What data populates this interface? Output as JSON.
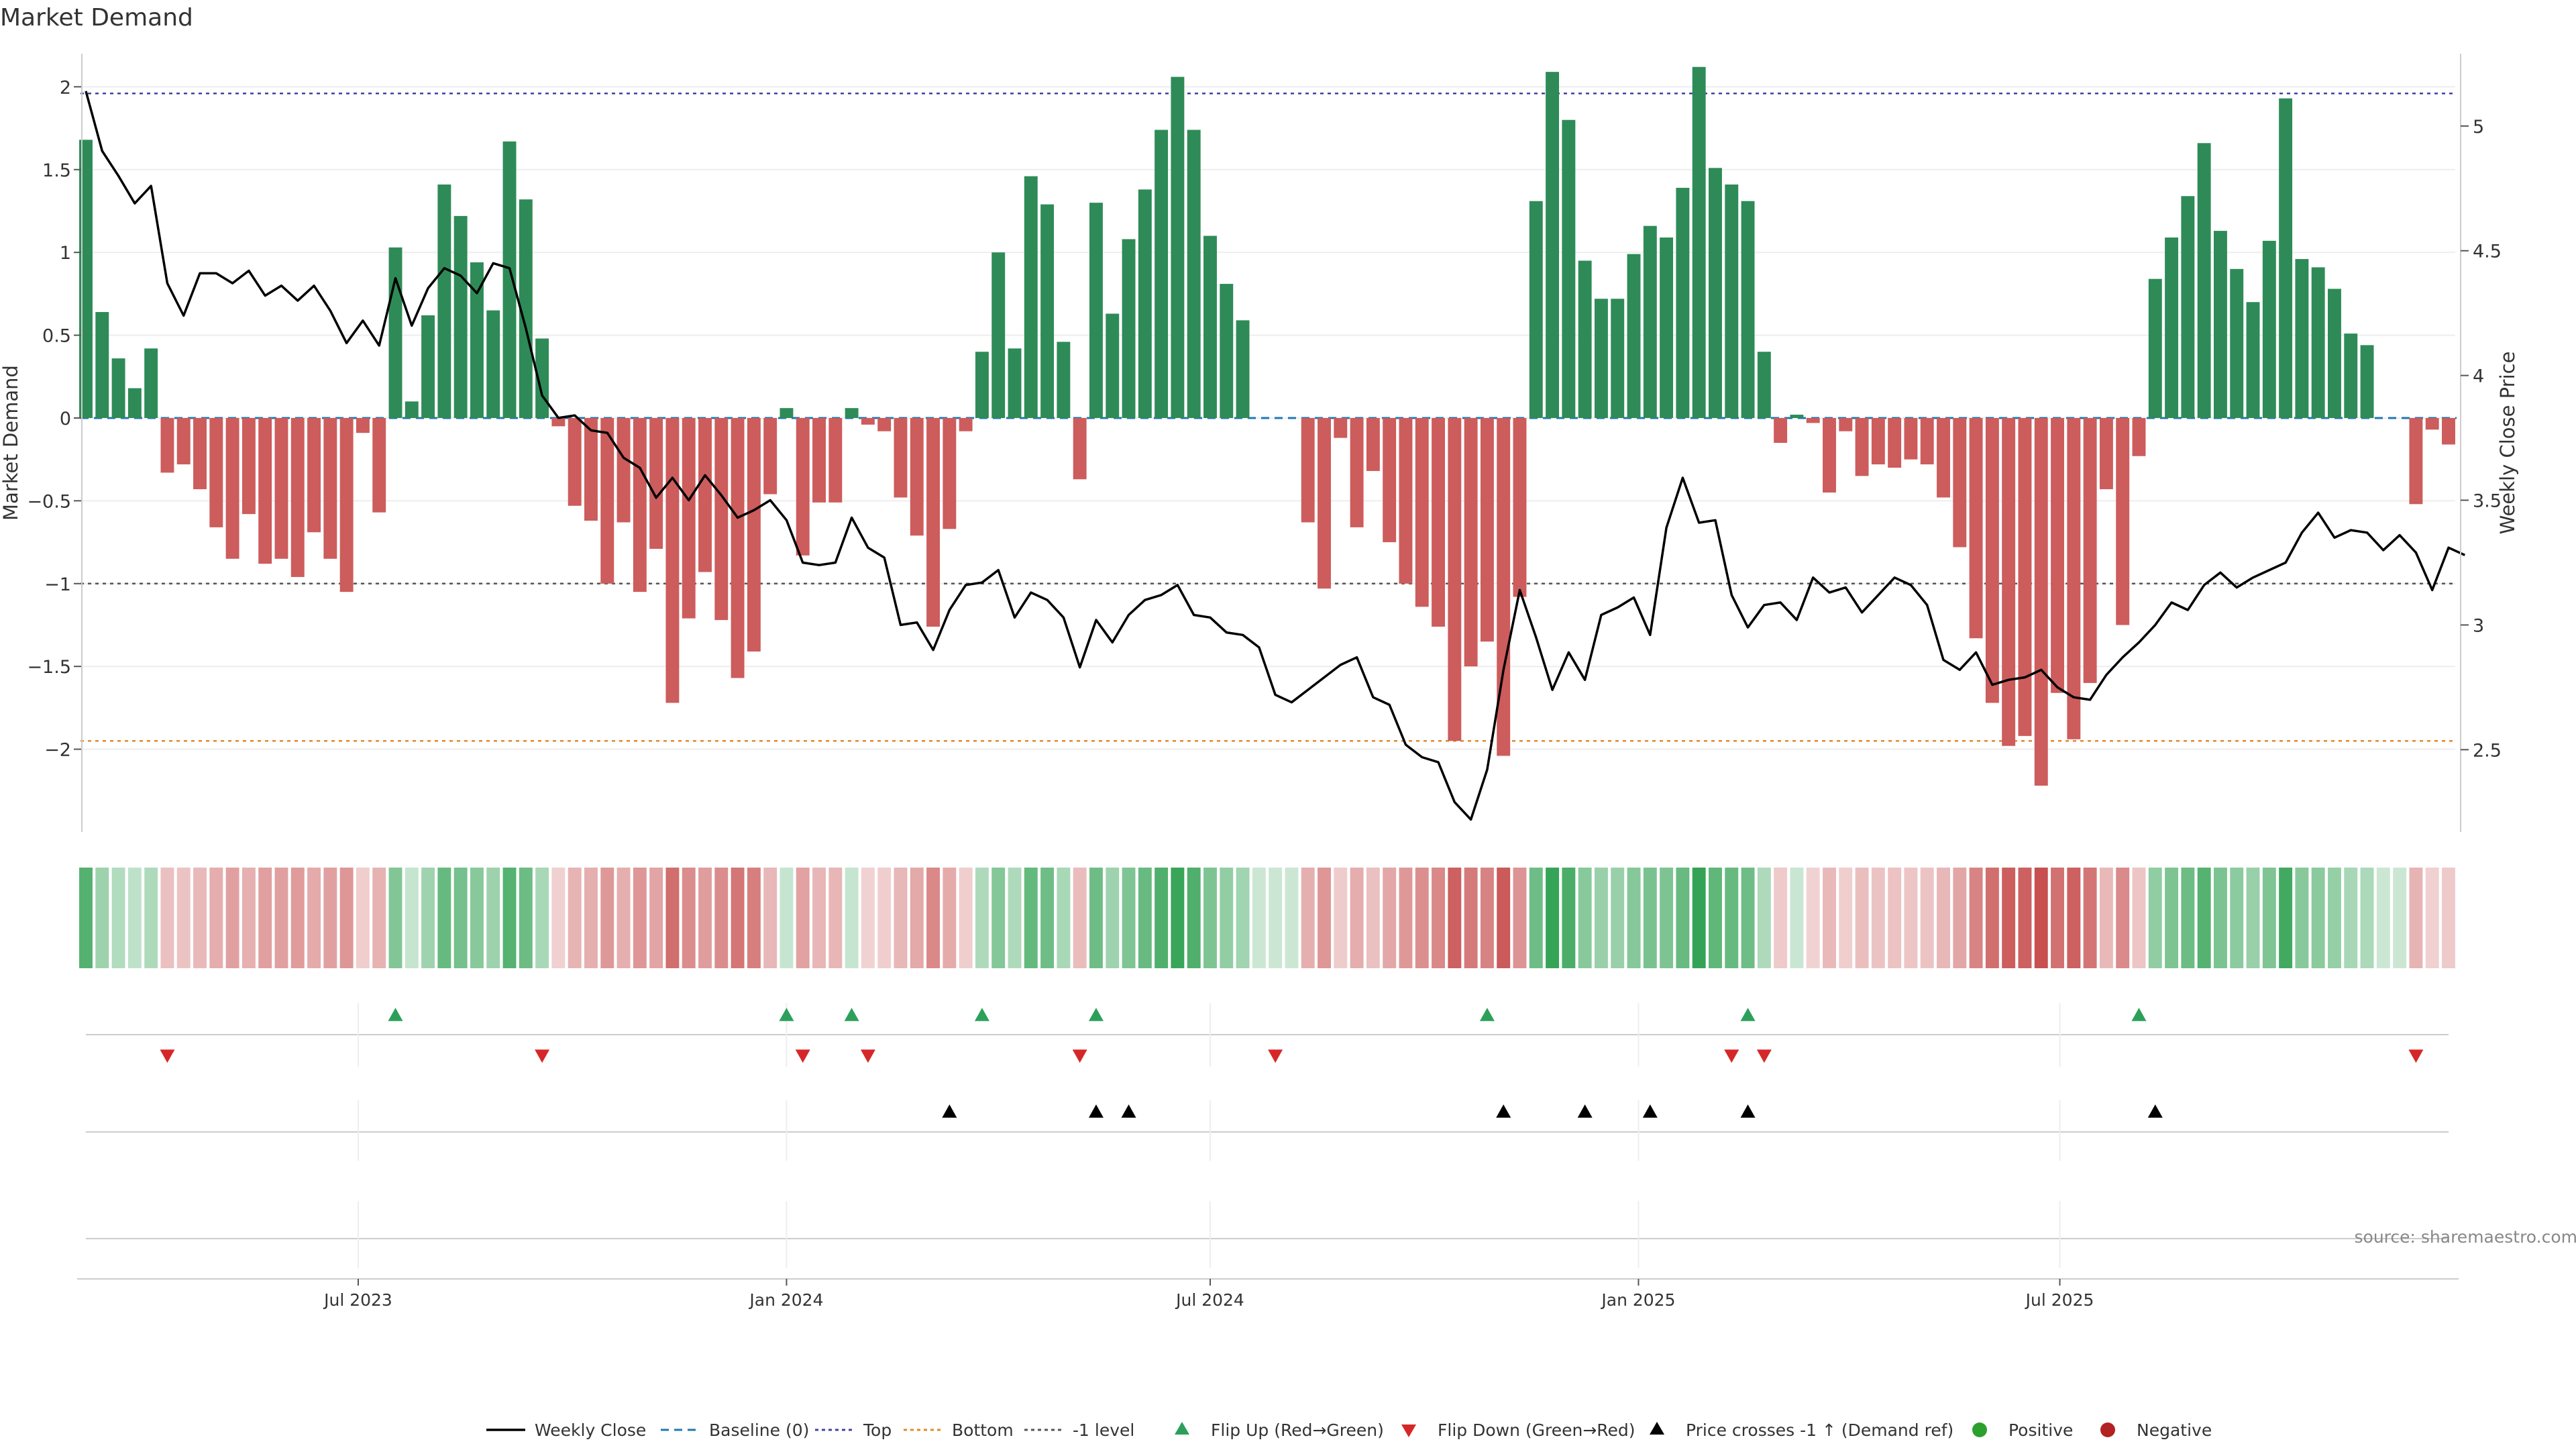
{
  "title": "Market Demand",
  "source_note": "source: sharemaestro.com",
  "chart_data": {
    "type": "bar",
    "title": "Market Demand",
    "ylabel": "Market Demand",
    "y2label": "Weekly Close Price",
    "ylim": [
      -2.5,
      2.2
    ],
    "y2lim": [
      2.17,
      5.29
    ],
    "yticks": [
      -2,
      -1.5,
      -1,
      -0.5,
      0,
      0.5,
      1,
      1.5,
      2
    ],
    "y2ticks": [
      2.5,
      3,
      3.5,
      4,
      4.5,
      5
    ],
    "x_start": "2023-03-06",
    "x_interval_days": 7,
    "xticks": [
      {
        "label": "Jul 2023",
        "date": "2023-07-01"
      },
      {
        "label": "Jan 2024",
        "date": "2024-01-01"
      },
      {
        "label": "Jul 2024",
        "date": "2024-07-01"
      },
      {
        "label": "Jan 2025",
        "date": "2025-01-01"
      },
      {
        "label": "Jul 2025",
        "date": "2025-07-01"
      }
    ],
    "reference_lines": {
      "top": 1.96,
      "bottom": -1.95,
      "minus_one": -1.0,
      "baseline": 0
    },
    "demand": [
      1.68,
      0.64,
      0.36,
      0.18,
      0.42,
      -0.33,
      -0.28,
      -0.43,
      -0.66,
      -0.85,
      -0.58,
      -0.88,
      -0.85,
      -0.96,
      -0.69,
      -0.85,
      -1.05,
      -0.09,
      -0.57,
      1.03,
      0.1,
      0.62,
      1.41,
      1.22,
      0.94,
      0.65,
      1.67,
      1.32,
      0.48,
      -0.05,
      -0.53,
      -0.62,
      -1.0,
      -0.63,
      -1.05,
      -0.79,
      -1.72,
      -1.21,
      -0.93,
      -1.22,
      -1.57,
      -1.41,
      -0.46,
      0.06,
      -0.83,
      -0.51,
      -0.51,
      0.06,
      -0.04,
      -0.08,
      -0.48,
      -0.71,
      -1.26,
      -0.67,
      -0.08,
      0.4,
      1.0,
      0.42,
      1.46,
      1.29,
      0.46,
      -0.37,
      1.3,
      0.63,
      1.08,
      1.38,
      1.74,
      2.06,
      1.74,
      1.1,
      0.81,
      0.59,
      0,
      0,
      0,
      -0.63,
      -1.03,
      -0.12,
      -0.66,
      -0.32,
      -0.75,
      -1.0,
      -1.14,
      -1.26,
      -1.95,
      -1.5,
      -1.35,
      -2.04,
      -1.08,
      1.31,
      2.09,
      1.8,
      0.95,
      0.72,
      0.72,
      0.99,
      1.16,
      1.09,
      1.39,
      2.12,
      1.51,
      1.41,
      1.31,
      0.4,
      -0.15,
      0.02,
      -0.03,
      -0.45,
      -0.08,
      -0.35,
      -0.28,
      -0.3,
      -0.25,
      -0.28,
      -0.48,
      -0.78,
      -1.33,
      -1.72,
      -1.98,
      -1.92,
      -2.22,
      -1.66,
      -1.94,
      -1.6,
      -0.43,
      -1.25,
      -0.23,
      0.84,
      1.09,
      1.34,
      1.66,
      1.13,
      0.9,
      0.7,
      1.07,
      1.93,
      0.96,
      0.91,
      0.78,
      0.51,
      0.44,
      0,
      0,
      -0.52,
      -0.07,
      -0.16
    ],
    "close": [
      5.14,
      4.9,
      4.8,
      4.69,
      4.76,
      4.37,
      4.24,
      4.41,
      4.41,
      4.37,
      4.42,
      4.32,
      4.36,
      4.3,
      4.36,
      4.26,
      4.13,
      4.22,
      4.12,
      4.39,
      4.2,
      4.35,
      4.43,
      4.4,
      4.33,
      4.45,
      4.43,
      4.19,
      3.92,
      3.83,
      3.84,
      3.78,
      3.77,
      3.67,
      3.63,
      3.51,
      3.59,
      3.5,
      3.6,
      3.52,
      3.43,
      3.46,
      3.5,
      3.42,
      3.25,
      3.24,
      3.25,
      3.43,
      3.31,
      3.27,
      3.0,
      3.01,
      2.9,
      3.06,
      3.16,
      3.17,
      3.22,
      3.03,
      3.13,
      3.1,
      3.03,
      2.83,
      3.02,
      2.93,
      3.04,
      3.1,
      3.12,
      3.16,
      3.04,
      3.03,
      2.97,
      2.96,
      2.91,
      2.72,
      2.69,
      2.74,
      2.79,
      2.84,
      2.87,
      2.71,
      2.68,
      2.52,
      2.47,
      2.45,
      2.29,
      2.22,
      2.42,
      2.82,
      3.14,
      2.95,
      2.74,
      2.89,
      2.78,
      3.04,
      3.07,
      3.11,
      2.96,
      3.39,
      3.59,
      3.41,
      3.42,
      3.12,
      2.99,
      3.08,
      3.09,
      3.02,
      3.19,
      3.13,
      3.15,
      3.05,
      3.12,
      3.19,
      3.16,
      3.08,
      2.86,
      2.82,
      2.89,
      2.76,
      2.78,
      2.79,
      2.82,
      2.75,
      2.71,
      2.7,
      2.8,
      2.87,
      2.93,
      3.0,
      3.09,
      3.06,
      3.16,
      3.21,
      3.15,
      3.19,
      3.22,
      3.25,
      3.37,
      3.45,
      3.35,
      3.38,
      3.37,
      3.3,
      3.36,
      3.29,
      3.14,
      3.31,
      3.28
    ],
    "flip_up_weeks": [
      19,
      43,
      47,
      55,
      62,
      86,
      102,
      126
    ],
    "flip_down_weeks": [
      5,
      28,
      44,
      48,
      61,
      73,
      101,
      103,
      143
    ],
    "price_cross_weeks": [
      53,
      62,
      64,
      87,
      92,
      96,
      102,
      127
    ],
    "colors": {
      "positive": "#2e8b57",
      "negative": "#cd5c5c",
      "close_line": "#000000",
      "baseline": "#1f77b4",
      "top": "#4040a0",
      "bottom": "#e08a2a",
      "minus_one": "#555555",
      "flip_up": "#2ca05a",
      "flip_down": "#d62728",
      "cross": "#000000",
      "positive_dot": "#2ca02c",
      "negative_dot": "#b22222"
    },
    "legend_position": "bottom-center",
    "legend": [
      {
        "label": "Weekly Close",
        "kind": "line"
      },
      {
        "label": "Baseline (0)",
        "kind": "dash-blue"
      },
      {
        "label": "Top",
        "kind": "dot-purple"
      },
      {
        "label": "Bottom",
        "kind": "dot-orange"
      },
      {
        "label": "-1 level",
        "kind": "dot-grey"
      },
      {
        "label": "Flip Up (Red→Green)",
        "kind": "tri-up-green"
      },
      {
        "label": "Flip Down (Green→Red)",
        "kind": "tri-down-red"
      },
      {
        "label": "Price crosses -1 ↑ (Demand ref)",
        "kind": "tri-up-black"
      },
      {
        "label": "Positive",
        "kind": "circle-green"
      },
      {
        "label": "Negative",
        "kind": "circle-red"
      }
    ]
  }
}
